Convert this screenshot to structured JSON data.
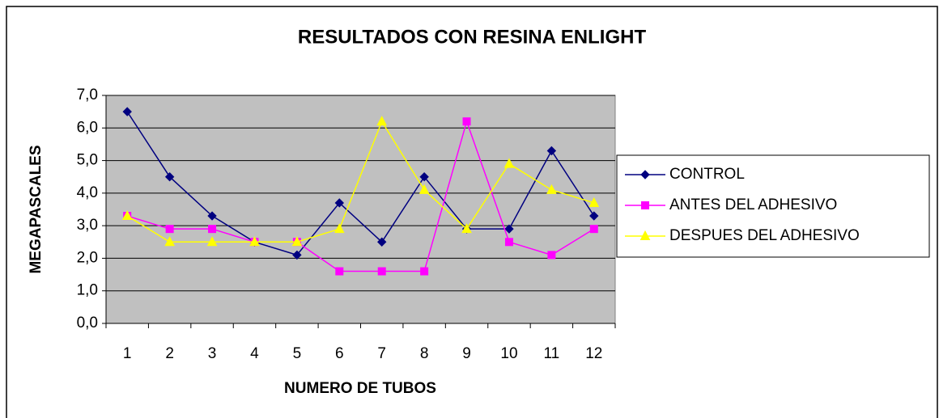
{
  "chart_data": {
    "type": "line",
    "title": "RESULTADOS CON RESINA ENLIGHT",
    "x_label": "NUMERO DE TUBOS",
    "y_label": "MEGAPASCALES",
    "categories": [
      "1",
      "2",
      "3",
      "4",
      "5",
      "6",
      "7",
      "8",
      "9",
      "10",
      "11",
      "12"
    ],
    "series": [
      {
        "name": "CONTROL",
        "color": "#000080",
        "marker": "diamond",
        "values": [
          6.5,
          4.5,
          3.3,
          2.5,
          2.1,
          3.7,
          2.5,
          4.5,
          2.9,
          2.9,
          5.3,
          3.3
        ]
      },
      {
        "name": "ANTES DEL ADHESIVO",
        "color": "#ff00ff",
        "marker": "square",
        "values": [
          3.3,
          2.9,
          2.9,
          2.5,
          2.5,
          1.6,
          1.6,
          1.6,
          6.2,
          2.5,
          2.1,
          2.9
        ]
      },
      {
        "name": "DESPUES DEL ADHESIVO",
        "color": "#ffff00",
        "marker": "triangle",
        "values": [
          3.3,
          2.5,
          2.5,
          2.5,
          2.5,
          2.9,
          6.2,
          4.1,
          2.9,
          4.9,
          4.1,
          3.7
        ]
      }
    ],
    "ylim": [
      0,
      7
    ],
    "yticks": [
      {
        "value": 0,
        "label": "0,0"
      },
      {
        "value": 1,
        "label": "1,0"
      },
      {
        "value": 2,
        "label": "2,0"
      },
      {
        "value": 3,
        "label": "3,0"
      },
      {
        "value": 4,
        "label": "4,0"
      },
      {
        "value": 5,
        "label": "5,0"
      },
      {
        "value": 6,
        "label": "6,0"
      },
      {
        "value": 7,
        "label": "7,0"
      }
    ],
    "grid": true,
    "legend": "right"
  }
}
